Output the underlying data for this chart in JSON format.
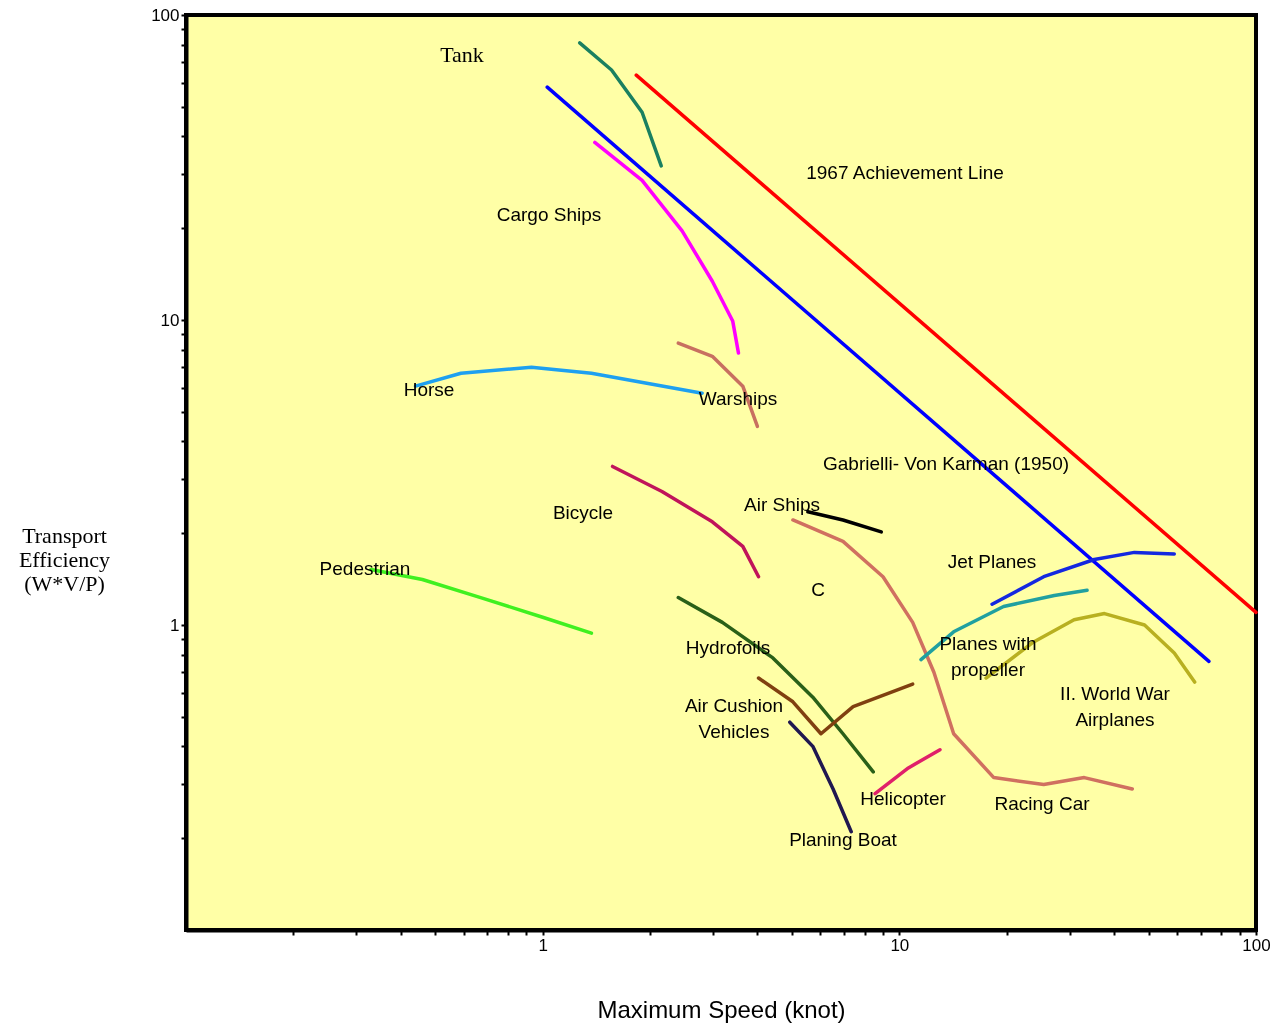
{
  "chart_data": {
    "type": "line",
    "xlabel": "Maximum Speed (knot)",
    "ylabel": "Transport\nEfficiency\n(W*V/P)",
    "log": "xy",
    "xlim": [
      0.1,
      100
    ],
    "ylim": [
      0.1,
      100
    ],
    "xticks": [
      {
        "value": 0.2,
        "label": null
      },
      {
        "value": 0.3,
        "label": null
      },
      {
        "value": 0.4,
        "label": null
      },
      {
        "value": 0.5,
        "label": null
      },
      {
        "value": 0.6,
        "label": null
      },
      {
        "value": 0.7,
        "label": null
      },
      {
        "value": 0.8,
        "label": null
      },
      {
        "value": 0.9,
        "label": null
      },
      1,
      {
        "value": 2,
        "label": null
      },
      {
        "value": 3,
        "label": null
      },
      {
        "value": 4,
        "label": null
      },
      {
        "value": 5,
        "label": null
      },
      {
        "value": 6,
        "label": null
      },
      {
        "value": 7,
        "label": null
      },
      {
        "value": 8,
        "label": null
      },
      {
        "value": 9,
        "label": null
      },
      10,
      {
        "value": 20,
        "label": null
      },
      {
        "value": 30,
        "label": null
      },
      {
        "value": 40,
        "label": null
      },
      {
        "value": 50,
        "label": null
      },
      {
        "value": 60,
        "label": null
      },
      {
        "value": 70,
        "label": null
      },
      {
        "value": 80,
        "label": null
      },
      {
        "value": 90,
        "label": null
      },
      100
    ],
    "yticks": [
      {
        "value": 0.2,
        "label": null
      },
      {
        "value": 0.3,
        "label": null
      },
      {
        "value": 0.4,
        "label": null
      },
      {
        "value": 0.5,
        "label": null
      },
      {
        "value": 0.6,
        "label": null
      },
      {
        "value": 0.7,
        "label": null
      },
      {
        "value": 0.8,
        "label": null
      },
      {
        "value": 0.9,
        "label": null
      },
      1,
      {
        "value": 2,
        "label": null
      },
      {
        "value": 3,
        "label": null
      },
      {
        "value": 4,
        "label": null
      },
      {
        "value": 5,
        "label": null
      },
      {
        "value": 6,
        "label": null
      },
      {
        "value": 7,
        "label": null
      },
      {
        "value": 8,
        "label": null
      },
      {
        "value": 9,
        "label": null
      },
      10,
      {
        "value": 20,
        "label": null
      },
      {
        "value": 30,
        "label": null
      },
      {
        "value": 40,
        "label": null
      },
      {
        "value": 50,
        "label": null
      },
      {
        "value": 60,
        "label": null
      },
      {
        "value": 70,
        "label": null
      },
      {
        "value": 80,
        "label": null
      },
      {
        "value": 90,
        "label": null
      },
      100
    ],
    "grid": false,
    "marker": "none",
    "line_style": "solid",
    "series": [
      {
        "color": "#1a8060",
        "x": [
          1.27,
          1.56,
          1.9,
          2.15
        ],
        "values": [
          81,
          66,
          48,
          32
        ]
      },
      {
        "color": "#ff0000",
        "x": [
          1.83,
          100
        ],
        "values": [
          63.5,
          1.1
        ]
      },
      {
        "color": "#0000ff",
        "x": [
          1.03,
          73.8
        ],
        "values": [
          58,
          0.76
        ]
      },
      {
        "color": "#ff00ff",
        "x": [
          1.4,
          1.9,
          2.46,
          2.99,
          3.41,
          3.54
        ],
        "values": [
          38.2,
          28.7,
          19.6,
          13.4,
          9.93,
          7.79
        ]
      },
      {
        "color": "#1ea0f0",
        "x": [
          0.44,
          0.59,
          0.93,
          1.37,
          2.03,
          2.8
        ],
        "values": [
          6.07,
          6.69,
          7.0,
          6.69,
          6.16,
          5.75
        ]
      },
      {
        "color": "#c87060",
        "x": [
          2.4,
          2.99,
          3.64,
          4.0
        ],
        "values": [
          8.4,
          7.6,
          6.07,
          4.48
        ]
      },
      {
        "color": "#c0145a",
        "x": [
          1.57,
          2.16,
          2.99,
          3.64,
          4.03
        ],
        "values": [
          3.31,
          2.74,
          2.18,
          1.81,
          1.44
        ]
      },
      {
        "color": "#40f020",
        "x": [
          0.33,
          0.46,
          0.67,
          1.0,
          1.37
        ],
        "values": [
          1.52,
          1.41,
          1.23,
          1.06,
          0.94
        ]
      },
      {
        "color": "#000000",
        "x": [
          5.54,
          6.95,
          8.9
        ],
        "values": [
          2.35,
          2.21,
          2.02
        ]
      },
      {
        "color": "#d07060",
        "x": [
          5.03,
          6.95,
          9.0,
          10.9,
          12.5,
          14.2,
          18.4,
          25.4,
          33.0,
          45
        ],
        "values": [
          2.21,
          1.88,
          1.44,
          1.02,
          0.7,
          0.44,
          0.316,
          0.3,
          0.316,
          0.29
        ]
      },
      {
        "color": "#1428e0",
        "x": [
          18.2,
          25.4,
          35.2,
          45.6,
          59
        ],
        "values": [
          1.17,
          1.44,
          1.64,
          1.73,
          1.71
        ]
      },
      {
        "color": "#20a0a0",
        "x": [
          11.5,
          14.2,
          19.6,
          27.2,
          33.6
        ],
        "values": [
          0.77,
          0.95,
          1.15,
          1.25,
          1.3
        ]
      },
      {
        "color": "#b8b020",
        "x": [
          17.5,
          23.8,
          30.9,
          37.6,
          48.7,
          59,
          67.3
        ],
        "values": [
          0.67,
          0.88,
          1.04,
          1.09,
          1.0,
          0.81,
          0.65
        ]
      },
      {
        "color": "#2a6018",
        "x": [
          2.4,
          3.19,
          4.42,
          5.72,
          6.95,
          8.45
        ],
        "values": [
          1.23,
          1.02,
          0.78,
          0.58,
          0.44,
          0.33
        ]
      },
      {
        "color": "#804010",
        "x": [
          4.03,
          5.03,
          6.03,
          7.42,
          10.9
        ],
        "values": [
          0.67,
          0.56,
          0.44,
          0.54,
          0.64
        ]
      },
      {
        "color": "#201850",
        "x": [
          4.93,
          5.72,
          6.52,
          7.33
        ],
        "values": [
          0.48,
          0.4,
          0.29,
          0.21
        ]
      },
      {
        "color": "#e0206a",
        "x": [
          8.55,
          10.6,
          13.0
        ],
        "values": [
          0.28,
          0.34,
          0.39
        ]
      }
    ],
    "annotations": [
      "Tank",
      "1967 Achievement Line",
      "Cargo Ships",
      "Horse",
      "Warships",
      "Gabrielli- Von Karman (1950)",
      "Bicycle",
      "Air Ships",
      "Pedestrian",
      "Jet Planes",
      "C",
      "Planes with\npropeller",
      "II. World War\nAirplanes",
      "Hydrofoils",
      "Air Cushion\nVehicles",
      "Helicopter",
      "Racing Car",
      "Planing Boat"
    ]
  }
}
